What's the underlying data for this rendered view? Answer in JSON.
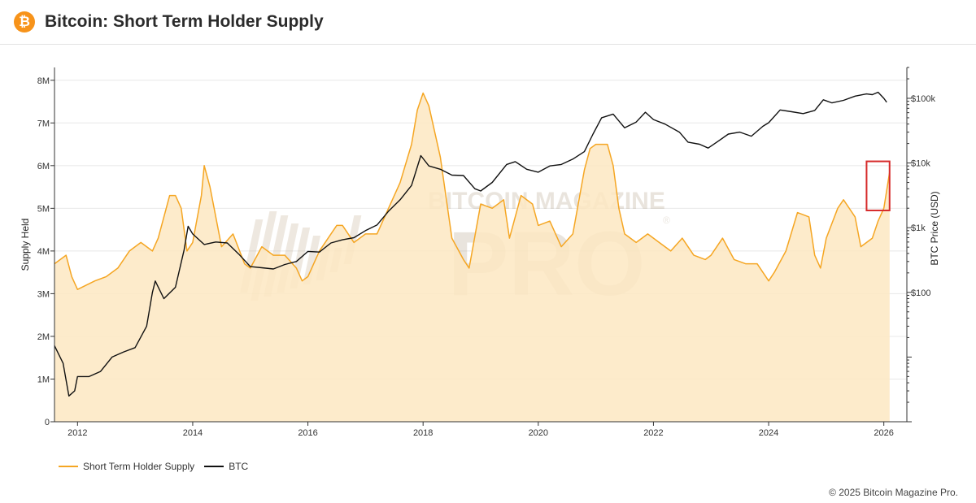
{
  "header": {
    "logo_glyph": "₿",
    "title": "Bitcoin: Short Term Holder Supply"
  },
  "colors": {
    "sth_line": "#f5a623",
    "sth_fill": "#fde7c2",
    "btc_line": "#111111",
    "highlight_box": "#d62a2a",
    "logo_bg": "#f7931a"
  },
  "watermark": {
    "line1": "BITCOIN MAGAZINE",
    "line2": "PRO",
    "mark": "®"
  },
  "legend": {
    "sth_label": "Short Term Holder Supply",
    "btc_label": "BTC",
    "placement": "bottom-left"
  },
  "footer": {
    "copyright": "© 2025 Bitcoin Magazine Pro."
  },
  "chart_data": {
    "type": "line",
    "title": "Bitcoin: Short Term Holder Supply",
    "xlabel": "",
    "ylabel": "Supply Held",
    "y2label": "BTC Price (USD)",
    "xlim": [
      2011.6,
      2026.4
    ],
    "ylim": [
      0,
      8300000
    ],
    "y2_scale": "log",
    "y2lim": [
      1,
      300000
    ],
    "grid": "horizontal",
    "x_ticks": [
      "2012",
      "2014",
      "2016",
      "2018",
      "2020",
      "2022",
      "2024",
      "2026"
    ],
    "y_ticks": [
      "0",
      "1M",
      "2M",
      "3M",
      "4M",
      "5M",
      "6M",
      "7M",
      "8M"
    ],
    "y2_ticks": [
      "$100",
      "$1k",
      "$10k",
      "$100k"
    ],
    "series": [
      {
        "name": "Short Term Holder Supply",
        "axis": "left",
        "style": "area",
        "x": [
          2011.6,
          2011.8,
          2011.9,
          2012.0,
          2012.3,
          2012.5,
          2012.7,
          2012.9,
          2013.1,
          2013.3,
          2013.4,
          2013.6,
          2013.7,
          2013.8,
          2013.9,
          2014.0,
          2014.15,
          2014.2,
          2014.3,
          2014.5,
          2014.7,
          2014.9,
          2015.0,
          2015.2,
          2015.4,
          2015.6,
          2015.8,
          2015.9,
          2016.0,
          2016.2,
          2016.4,
          2016.5,
          2016.6,
          2016.8,
          2016.9,
          2017.0,
          2017.2,
          2017.4,
          2017.6,
          2017.8,
          2017.9,
          2018.0,
          2018.1,
          2018.3,
          2018.5,
          2018.7,
          2018.8,
          2019.0,
          2019.2,
          2019.4,
          2019.5,
          2019.7,
          2019.9,
          2020.0,
          2020.2,
          2020.4,
          2020.6,
          2020.8,
          2020.9,
          2021.0,
          2021.2,
          2021.3,
          2021.4,
          2021.5,
          2021.7,
          2021.9,
          2022.1,
          2022.3,
          2022.5,
          2022.7,
          2022.9,
          2023.0,
          2023.2,
          2023.4,
          2023.6,
          2023.8,
          2024.0,
          2024.1,
          2024.3,
          2024.5,
          2024.7,
          2024.8,
          2024.9,
          2025.0,
          2025.2,
          2025.3,
          2025.5,
          2025.6,
          2025.8,
          2025.9,
          2026.0,
          2026.1
        ],
        "values": [
          3700000,
          3900000,
          3400000,
          3100000,
          3300000,
          3400000,
          3600000,
          4000000,
          4200000,
          4000000,
          4300000,
          5300000,
          5300000,
          5000000,
          4000000,
          4200000,
          5300000,
          6000000,
          5500000,
          4100000,
          4400000,
          3700000,
          3600000,
          4100000,
          3900000,
          3900000,
          3600000,
          3300000,
          3400000,
          4000000,
          4400000,
          4600000,
          4600000,
          4200000,
          4300000,
          4400000,
          4400000,
          5000000,
          5600000,
          6500000,
          7300000,
          7700000,
          7400000,
          6200000,
          4300000,
          3800000,
          3600000,
          5100000,
          5000000,
          5200000,
          4300000,
          5300000,
          5100000,
          4600000,
          4700000,
          4100000,
          4400000,
          5900000,
          6400000,
          6500000,
          6500000,
          6000000,
          5000000,
          4400000,
          4200000,
          4400000,
          4200000,
          4000000,
          4300000,
          3900000,
          3800000,
          3900000,
          4300000,
          3800000,
          3700000,
          3700000,
          3300000,
          3500000,
          4000000,
          4900000,
          4800000,
          3900000,
          3600000,
          4300000,
          5000000,
          5200000,
          4800000,
          4100000,
          4300000,
          4700000,
          5000000,
          5850000
        ]
      },
      {
        "name": "BTC",
        "axis": "right",
        "style": "line",
        "x": [
          2011.6,
          2011.75,
          2011.85,
          2011.95,
          2012.0,
          2012.2,
          2012.4,
          2012.6,
          2012.8,
          2013.0,
          2013.2,
          2013.3,
          2013.35,
          2013.5,
          2013.7,
          2013.85,
          2013.92,
          2014.0,
          2014.2,
          2014.4,
          2014.6,
          2014.8,
          2015.0,
          2015.2,
          2015.4,
          2015.6,
          2015.8,
          2016.0,
          2016.2,
          2016.4,
          2016.6,
          2016.8,
          2017.0,
          2017.2,
          2017.4,
          2017.6,
          2017.8,
          2017.96,
          2018.1,
          2018.3,
          2018.5,
          2018.7,
          2018.9,
          2019.0,
          2019.2,
          2019.45,
          2019.6,
          2019.8,
          2020.0,
          2020.2,
          2020.4,
          2020.6,
          2020.8,
          2020.95,
          2021.1,
          2021.3,
          2021.5,
          2021.7,
          2021.86,
          2022.0,
          2022.2,
          2022.45,
          2022.6,
          2022.8,
          2022.95,
          2023.1,
          2023.3,
          2023.5,
          2023.7,
          2023.9,
          2024.0,
          2024.2,
          2024.4,
          2024.6,
          2024.8,
          2024.95,
          2025.1,
          2025.3,
          2025.5,
          2025.7,
          2025.8,
          2025.9,
          2026.0,
          2026.05
        ],
        "values": [
          15,
          8,
          2.5,
          3,
          5,
          5,
          6,
          10,
          12,
          14,
          30,
          100,
          150,
          80,
          120,
          450,
          1050,
          800,
          550,
          600,
          580,
          390,
          250,
          240,
          230,
          270,
          300,
          430,
          420,
          580,
          650,
          700,
          900,
          1100,
          1800,
          2700,
          4500,
          13000,
          9000,
          8000,
          6500,
          6400,
          4000,
          3700,
          5000,
          9500,
          10500,
          8000,
          7200,
          9000,
          9500,
          11500,
          15000,
          28000,
          50000,
          57000,
          35000,
          43000,
          61000,
          47000,
          40000,
          30000,
          21000,
          19500,
          17000,
          21000,
          28000,
          30000,
          26000,
          37000,
          42000,
          66000,
          62000,
          58000,
          65000,
          95000,
          85000,
          93000,
          108000,
          117000,
          114000,
          124000,
          100000,
          87000
        ]
      }
    ],
    "annotations": [
      {
        "type": "box",
        "x0": 2025.7,
        "x1": 2026.1,
        "y0": 4950000,
        "y1": 6100000,
        "color": "#d62a2a"
      }
    ]
  }
}
